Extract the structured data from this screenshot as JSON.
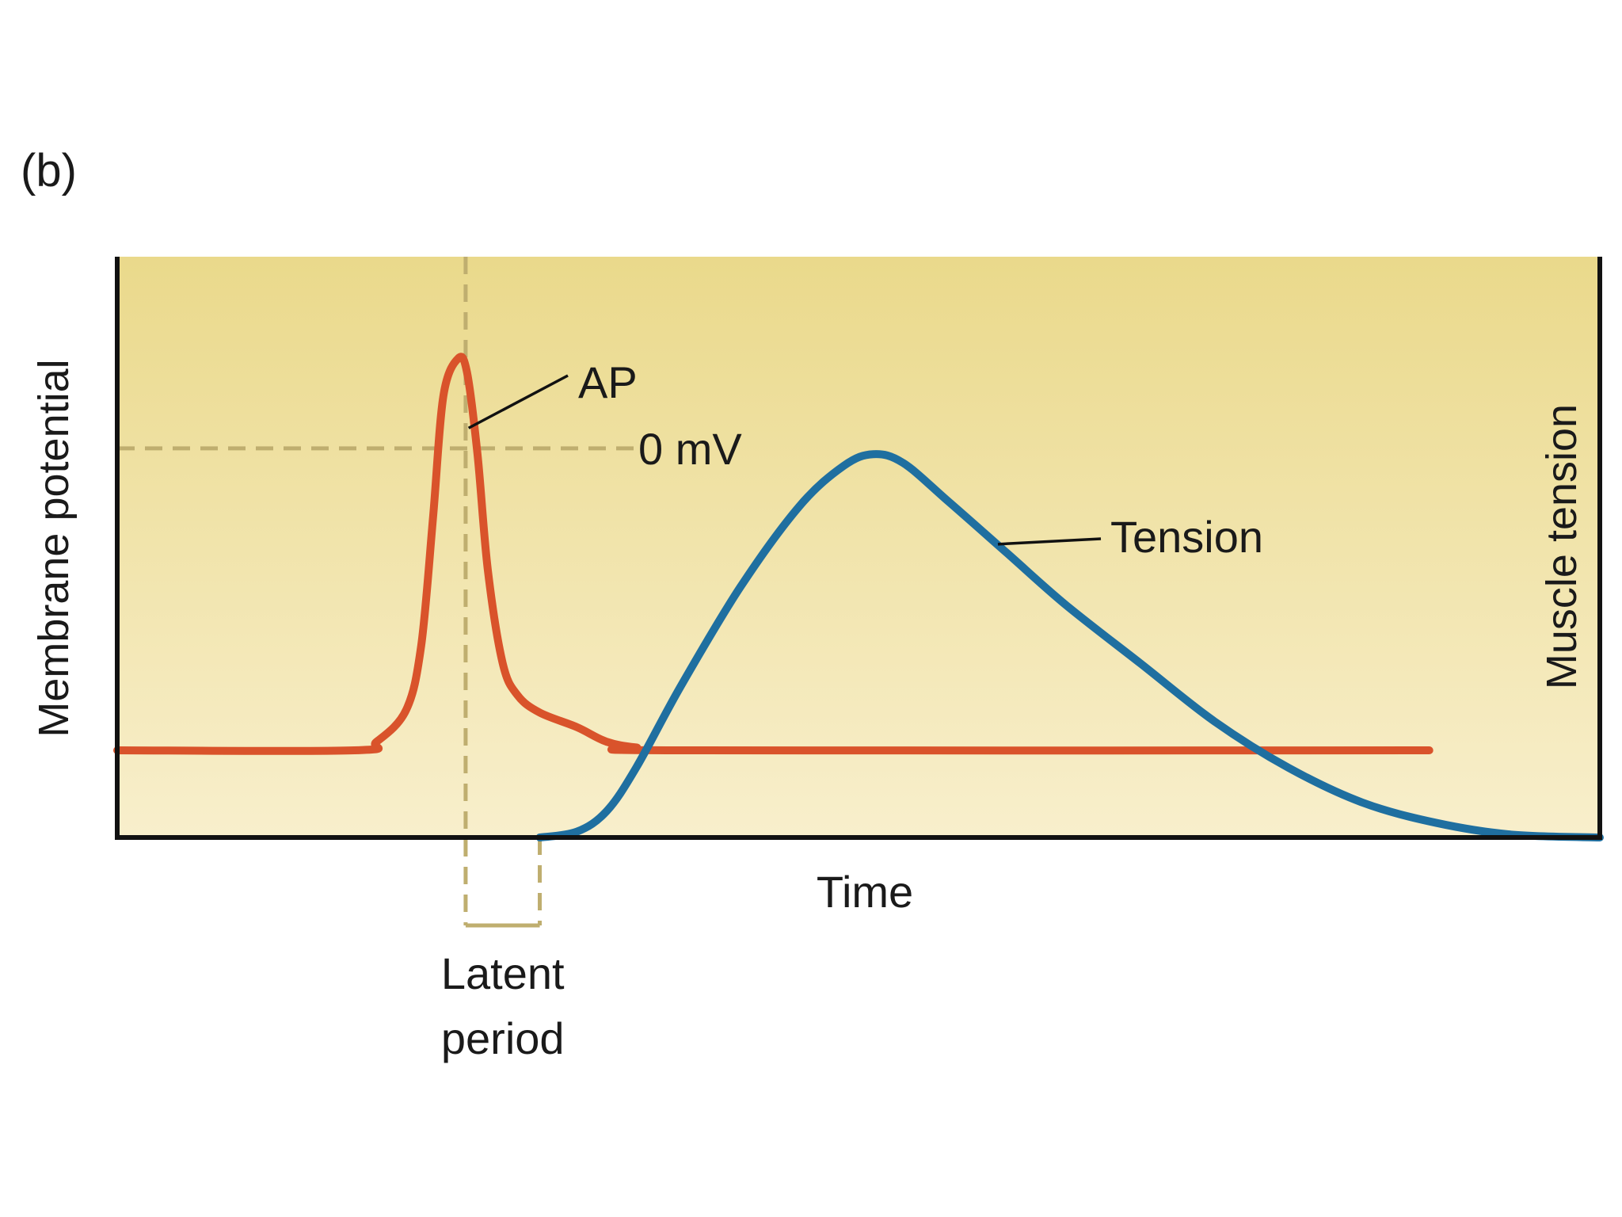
{
  "panel_label": "(b)",
  "colors": {
    "background_top": "#ead98b",
    "background_bottom": "#f8efcc",
    "ap_line": "#d9532b",
    "tension_line": "#1f6fa0",
    "guide_line": "#bfae6f",
    "axis": "#111111",
    "leader": "#111111"
  },
  "chart_data": {
    "type": "line",
    "title": "",
    "xlabel": "Time",
    "ylabel_left": "Membrane potential",
    "ylabel_right": "Muscle tension",
    "grid": false,
    "legend": "none",
    "xlim": [
      0,
      100
    ],
    "ylim": [
      0,
      100
    ],
    "zero_mv_label": "0 mV",
    "zero_mv_level": 67,
    "latent_period_label": [
      "Latent",
      "period"
    ],
    "latent_period_range": [
      23.5,
      28.5
    ],
    "series": [
      {
        "name": "AP",
        "label_text": "AP",
        "points": [
          [
            0,
            15
          ],
          [
            16,
            15
          ],
          [
            17.5,
            16.5
          ],
          [
            19.5,
            22
          ],
          [
            20.5,
            33
          ],
          [
            21.3,
            55
          ],
          [
            22.0,
            76
          ],
          [
            23.0,
            82.5
          ],
          [
            23.6,
            80
          ],
          [
            24.3,
            66
          ],
          [
            25.0,
            46
          ],
          [
            26.0,
            30
          ],
          [
            27.0,
            24.5
          ],
          [
            28.5,
            21.5
          ],
          [
            31.0,
            19
          ],
          [
            33.0,
            16.5
          ],
          [
            35.0,
            15.5
          ],
          [
            38.0,
            15
          ],
          [
            88.5,
            15
          ]
        ]
      },
      {
        "name": "Tension",
        "label_text": "Tension",
        "points": [
          [
            28.5,
            0
          ],
          [
            31,
            1
          ],
          [
            33,
            4.5
          ],
          [
            35,
            12
          ],
          [
            38,
            26
          ],
          [
            42,
            43
          ],
          [
            46,
            57
          ],
          [
            49,
            64
          ],
          [
            51,
            66
          ],
          [
            53,
            64.5
          ],
          [
            56,
            58
          ],
          [
            60,
            49
          ],
          [
            64,
            40
          ],
          [
            69,
            30
          ],
          [
            74,
            20
          ],
          [
            79,
            12
          ],
          [
            84,
            6
          ],
          [
            89,
            2.5
          ],
          [
            94,
            0.5
          ],
          [
            100,
            0
          ]
        ]
      }
    ]
  }
}
